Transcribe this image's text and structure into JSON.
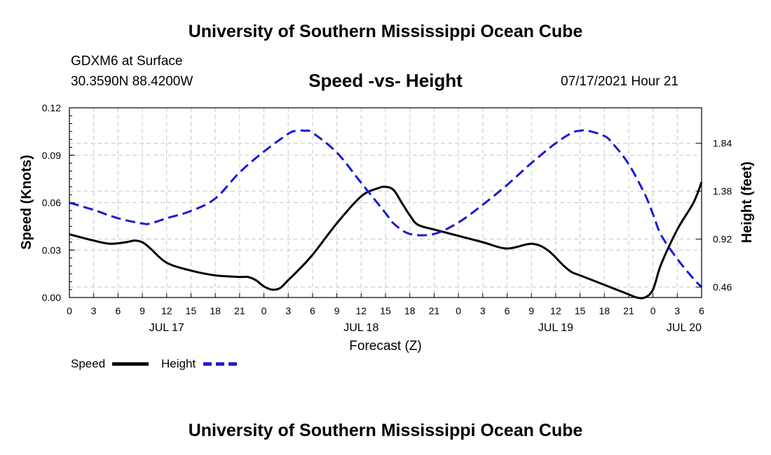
{
  "header": {
    "title": "University of Southern Mississippi Ocean Cube",
    "station": "GDXM6 at Surface",
    "location": "30.3590N  88.4200W",
    "plot_title": "Speed -vs- Height",
    "datetime": "07/17/2021 Hour 21"
  },
  "footer": {
    "title": "University of Southern Mississippi Ocean Cube"
  },
  "legend": {
    "speed_label": "Speed",
    "height_label": "Height"
  },
  "colors": {
    "speed": "#000000",
    "height": "#1a1ad6",
    "grid": "#c8c8c8"
  },
  "chart_data": {
    "type": "line",
    "title": "Speed -vs- Height",
    "xlabel": "Forecast (Z)",
    "ylabel": "Speed (Knots)",
    "y2label": "Height (feet)",
    "x_unit": "forecast hours since JUL 17 00Z",
    "xlim": [
      0,
      78
    ],
    "ylim": [
      0,
      0.12
    ],
    "y2lim": [
      0.36,
      2.18
    ],
    "x_ticks": [
      0,
      3,
      6,
      9,
      12,
      15,
      18,
      21,
      24,
      27,
      30,
      33,
      36,
      39,
      42,
      45,
      48,
      51,
      54,
      57,
      60,
      63,
      66,
      69,
      72,
      75,
      78
    ],
    "x_tick_labels": [
      "0",
      "3",
      "6",
      "9",
      "12",
      "15",
      "18",
      "21",
      "0",
      "3",
      "6",
      "9",
      "12",
      "15",
      "18",
      "21",
      "0",
      "3",
      "6",
      "9",
      "12",
      "15",
      "18",
      "21",
      "0",
      "3",
      "6"
    ],
    "date_labels": [
      {
        "x": 12,
        "label": "JUL 17"
      },
      {
        "x": 36,
        "label": "JUL 18"
      },
      {
        "x": 60,
        "label": "JUL 19"
      },
      {
        "x": 78,
        "label": "JUL 20"
      }
    ],
    "y_ticks": [
      0,
      0.03,
      0.06,
      0.09,
      0.12
    ],
    "y_tick_labels": [
      "0.00",
      "0.03",
      "0.06",
      "0.09",
      "0.12"
    ],
    "y2_ticks": [
      0.46,
      0.92,
      1.38,
      1.84
    ],
    "y2_tick_labels": [
      "0.46",
      "0.92",
      "1.38",
      "1.84"
    ],
    "series": [
      {
        "name": "Speed",
        "axis": "left",
        "style": "solid",
        "x": [
          0,
          3,
          5,
          7,
          8,
          9,
          10,
          12,
          15,
          18,
          21,
          22,
          23,
          24,
          25,
          26,
          27,
          28,
          30,
          33,
          36,
          38,
          39,
          40,
          41,
          42,
          43,
          45,
          48,
          51,
          54,
          57,
          59,
          61,
          62,
          63,
          65,
          66,
          68,
          69,
          70,
          71,
          72,
          73,
          75,
          77,
          78
        ],
        "values": [
          0.04,
          0.036,
          0.034,
          0.035,
          0.036,
          0.035,
          0.031,
          0.022,
          0.017,
          0.014,
          0.013,
          0.013,
          0.011,
          0.007,
          0.005,
          0.006,
          0.011,
          0.016,
          0.027,
          0.047,
          0.064,
          0.069,
          0.07,
          0.068,
          0.06,
          0.052,
          0.046,
          0.043,
          0.039,
          0.035,
          0.031,
          0.034,
          0.03,
          0.02,
          0.016,
          0.014,
          0.01,
          0.008,
          0.004,
          0.002,
          0.0,
          0.0,
          0.005,
          0.021,
          0.043,
          0.06,
          0.073
        ]
      },
      {
        "name": "Height",
        "axis": "right",
        "style": "dashed",
        "x": [
          0,
          3,
          6,
          9,
          10,
          12,
          15,
          18,
          21,
          24,
          27,
          28,
          29,
          30,
          33,
          36,
          39,
          40,
          42,
          45,
          48,
          51,
          54,
          57,
          60,
          62,
          63,
          64,
          66,
          67,
          69,
          71,
          72,
          73,
          75,
          77,
          78
        ],
        "values": [
          1.27,
          1.2,
          1.12,
          1.07,
          1.07,
          1.12,
          1.19,
          1.31,
          1.56,
          1.76,
          1.93,
          1.96,
          1.96,
          1.94,
          1.75,
          1.46,
          1.17,
          1.07,
          0.97,
          0.97,
          1.08,
          1.25,
          1.44,
          1.65,
          1.84,
          1.94,
          1.96,
          1.96,
          1.91,
          1.84,
          1.64,
          1.35,
          1.16,
          0.96,
          0.73,
          0.54,
          0.46
        ]
      }
    ]
  }
}
